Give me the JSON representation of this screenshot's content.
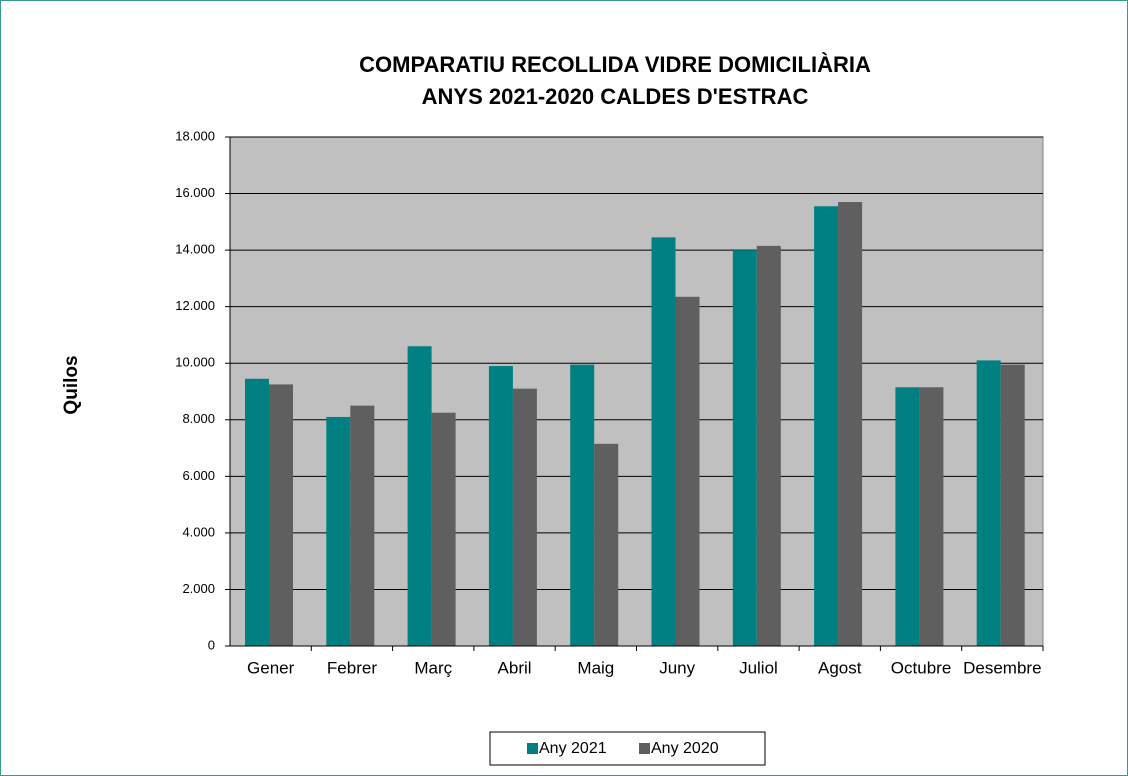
{
  "chart_data": {
    "type": "bar",
    "title": "COMPARATIU RECOLLIDA VIDRE DOMICILIÀRIA",
    "subtitle": "ANYS 2021-2020 CALDES D'ESTRAC",
    "y_label": "Quilos",
    "categories": [
      "Gener",
      "Febrer",
      "Març",
      "Abril",
      "Maig",
      "Juny",
      "Juliol",
      "Agost",
      "Octubre",
      "Desembre"
    ],
    "series": [
      {
        "name": "Any 2021",
        "color": "#008080",
        "values": [
          9450,
          8100,
          10600,
          9900,
          9950,
          14450,
          14000,
          15550,
          9150,
          10100
        ]
      },
      {
        "name": "Any 2020",
        "color": "#5f5f5f",
        "values": [
          9250,
          8500,
          8250,
          9100,
          7150,
          12350,
          14150,
          15700,
          9150,
          9950
        ]
      }
    ],
    "ylim": [
      0,
      18000
    ],
    "yticks": [
      0,
      {
        "value": 2000,
        "label": "2.000"
      },
      {
        "value": 4000,
        "label": "4.000"
      },
      {
        "value": 6000,
        "label": "6.000"
      },
      {
        "value": 8000,
        "label": "8.000"
      },
      {
        "value": 10000,
        "label": "10.000"
      },
      {
        "value": 12000,
        "label": "12.000"
      },
      {
        "value": 14000,
        "label": "14.000"
      },
      {
        "value": 16000,
        "label": "16.000"
      },
      {
        "value": 18000,
        "label": "18.000"
      }
    ],
    "grid": true,
    "plot_background": "#c0c0c0"
  }
}
